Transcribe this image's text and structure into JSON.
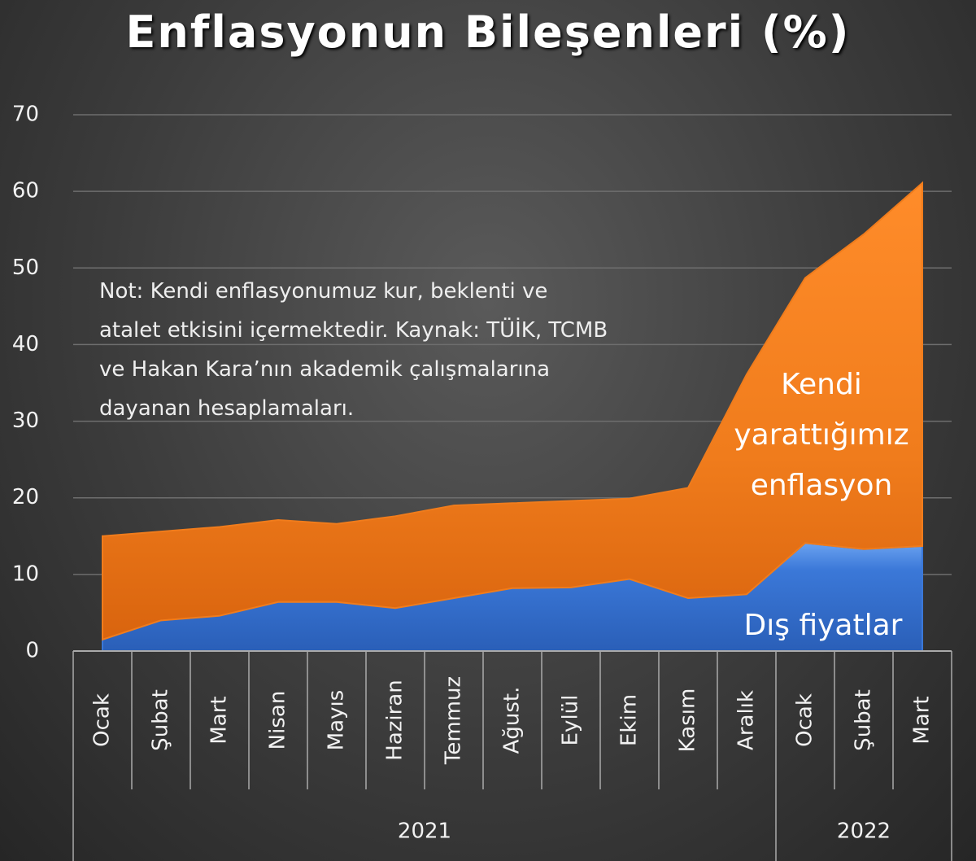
{
  "chart_data": {
    "type": "stacked_area",
    "title": "Enflasyonun Bileşenleri (%)",
    "annotation": "Not: Kendi enflasyonumuz kur, beklenti ve atalet etkisini içermektedir. Kaynak: TÜİK, TCMB ve Hakan Kara’nın akademik çalışmalarına dayanan hesaplamaları.",
    "categories": [
      "Ocak",
      "Şubat",
      "Mart",
      "Nisan",
      "Mayıs",
      "Haziran",
      "Temmuz",
      "Ağust.",
      "Eylül",
      "Ekim",
      "Kasım",
      "Aralık",
      "Ocak",
      "Şubat",
      "Mart"
    ],
    "x_groups": [
      "2021",
      "2021",
      "2021",
      "2021",
      "2021",
      "2021",
      "2021",
      "2021",
      "2021",
      "2021",
      "2021",
      "2021",
      "2022",
      "2022",
      "2022"
    ],
    "series": [
      {
        "name": "Dış fiyatlar",
        "color": "#3b78d8",
        "values": [
          1.5,
          4.0,
          4.6,
          6.4,
          6.4,
          5.6,
          6.9,
          8.2,
          8.3,
          9.4,
          6.9,
          7.4,
          14.1,
          13.3,
          13.7
        ]
      },
      {
        "name": "Kendi yarattığımız enflasyon",
        "color": "#f07c1c",
        "values": [
          13.5,
          11.6,
          11.6,
          10.7,
          10.2,
          12.0,
          12.1,
          11.1,
          11.3,
          10.5,
          14.4,
          28.7,
          34.6,
          41.1,
          47.4
        ]
      }
    ],
    "ylim": [
      0,
      70
    ],
    "yticks": [
      0,
      10,
      20,
      30,
      40,
      50,
      60,
      70
    ],
    "grid": true
  }
}
